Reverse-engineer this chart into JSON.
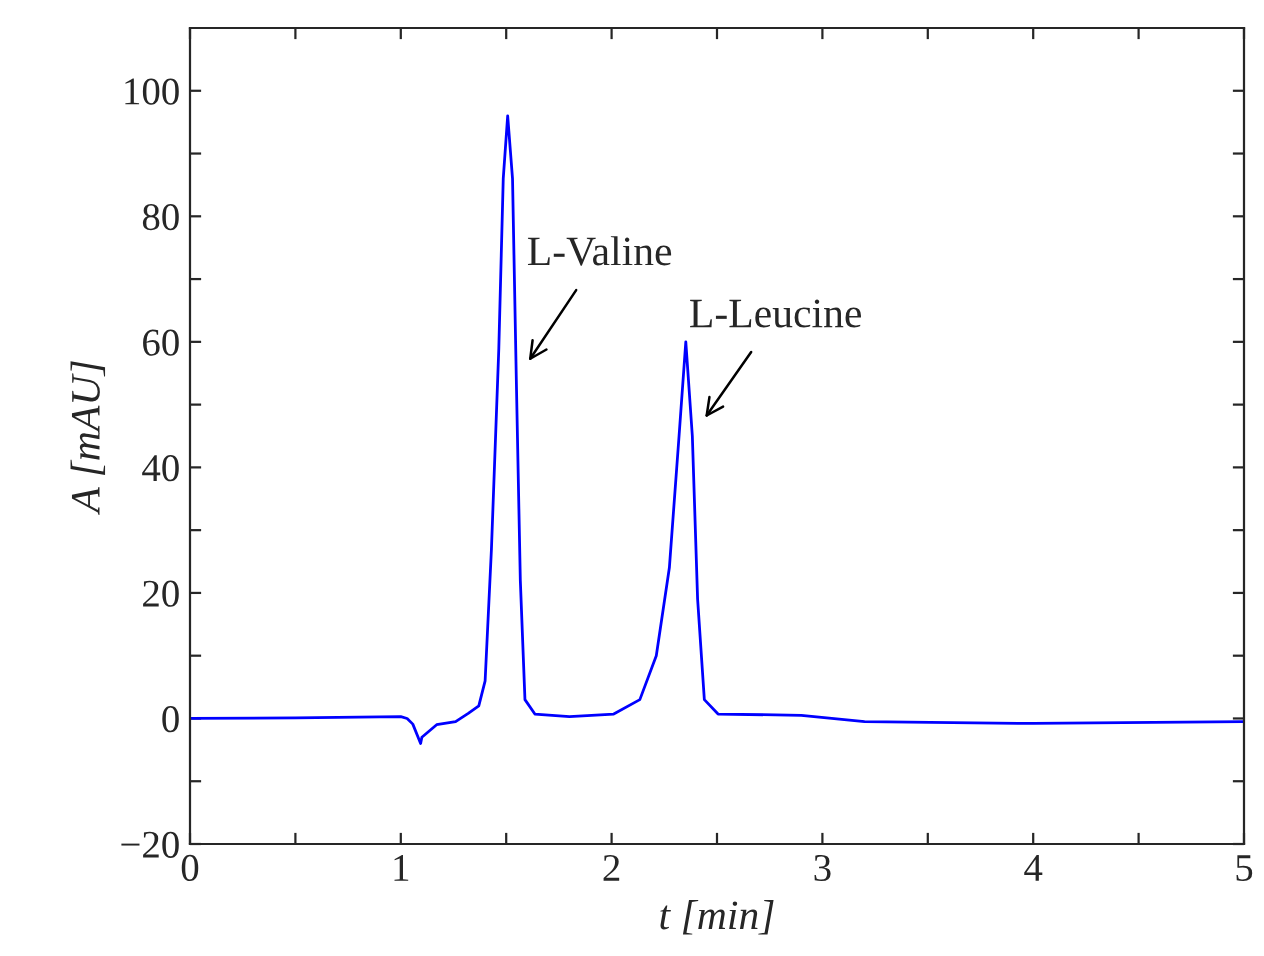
{
  "chart_data": {
    "type": "line",
    "xlabel": "t [min]",
    "ylabel": "A [mAU]",
    "xlim": [
      0,
      5
    ],
    "ylim": [
      -20,
      110
    ],
    "xticks": [
      0,
      {
        "value": 0.5,
        "label": null
      },
      1,
      {
        "value": 1.5,
        "label": null
      },
      2,
      {
        "value": 2.5,
        "label": null
      },
      3,
      {
        "value": 3.5,
        "label": null
      },
      4,
      {
        "value": 4.5,
        "label": null
      },
      5
    ],
    "yticks": [
      -20,
      {
        "value": -10,
        "label": null
      },
      0,
      {
        "value": 10,
        "label": null
      },
      20,
      {
        "value": 30,
        "label": null
      },
      40,
      {
        "value": 50,
        "label": null
      },
      60,
      {
        "value": 70,
        "label": null
      },
      80,
      {
        "value": 90,
        "label": null
      },
      100
    ],
    "grid": false,
    "marker": "none",
    "line_style": "solid",
    "series": [
      {
        "color": "#0000ff",
        "x": [
          0,
          0.5,
          1.0,
          1.03,
          1.057,
          1.094,
          1.1,
          1.17,
          1.26,
          1.32,
          1.37,
          1.4,
          1.43,
          1.465,
          1.486,
          1.507,
          1.53,
          1.548,
          1.567,
          1.589,
          1.636,
          1.8,
          2.01,
          2.134,
          2.212,
          2.274,
          2.32,
          2.352,
          2.383,
          2.408,
          2.44,
          2.505,
          2.9,
          3.2,
          4.0,
          5.0
        ],
        "values": [
          0,
          0.1,
          0.3,
          0,
          -0.9,
          -4,
          -3,
          -1,
          -0.5,
          0.8,
          2,
          6,
          27,
          59,
          86,
          96,
          86,
          54,
          22,
          3,
          0.7,
          0.3,
          0.7,
          3,
          10,
          24,
          45,
          60,
          45,
          19,
          3,
          0.7,
          0.5,
          -0.5,
          -0.8,
          -0.5
        ]
      }
    ],
    "annotations": [
      {
        "text": "L-Valine",
        "x": 1.548,
        "y": 54
      },
      {
        "text": "L-Leucine",
        "x": 2.383,
        "y": 45
      }
    ]
  }
}
